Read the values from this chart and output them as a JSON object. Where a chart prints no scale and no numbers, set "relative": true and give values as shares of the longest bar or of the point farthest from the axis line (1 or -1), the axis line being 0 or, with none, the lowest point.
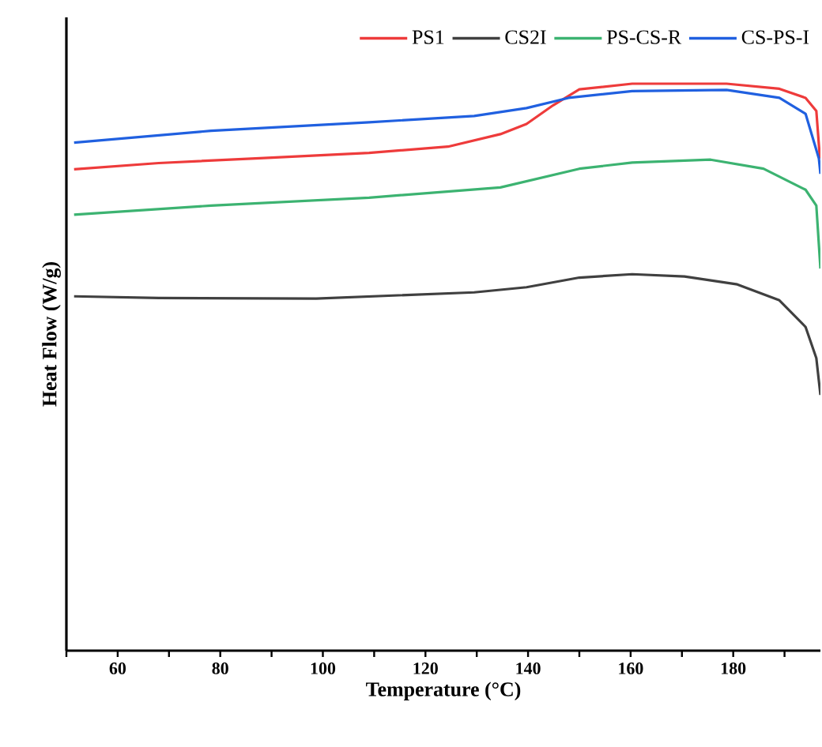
{
  "chart_data": {
    "type": "line",
    "xlabel": "Temperature (°C)",
    "ylabel": "Heat Flow (W/g)",
    "relative": true,
    "legend": "top",
    "marker": "none",
    "line_style": "solid",
    "grid": false,
    "xlim": [
      50,
      197
    ],
    "xticks": [
      {
        "value": 50,
        "label": null
      },
      60,
      {
        "value": 70,
        "label": null
      },
      80,
      {
        "value": 90,
        "label": null
      },
      100,
      {
        "value": 110,
        "label": null
      },
      120,
      {
        "value": 130,
        "label": null
      },
      140,
      {
        "value": 150,
        "label": null
      },
      160,
      {
        "value": 170,
        "label": null
      },
      180,
      {
        "value": 190,
        "label": null
      }
    ],
    "series": [
      {
        "name": "PS1",
        "color": "#ee3b3b",
        "x": [
          51.5,
          68,
          88.5,
          109,
          124.4,
          134.6,
          139.7,
          144.9,
          150,
          160.3,
          178.7,
          189,
          194.1,
          196.2,
          196.9
        ],
        "values": [
          0.849,
          0.86,
          0.869,
          0.878,
          0.889,
          0.911,
          0.929,
          0.962,
          0.99,
          1.0,
          1.0,
          0.991,
          0.975,
          0.952,
          0.868
        ]
      },
      {
        "name": "CS2I",
        "color": "#404040",
        "x": [
          51.5,
          68,
          98.7,
          129.5,
          139.7,
          150,
          160.3,
          170.5,
          180.8,
          189,
          194.1,
          196.2,
          197
        ],
        "values": [
          0.625,
          0.622,
          0.621,
          0.632,
          0.641,
          0.658,
          0.664,
          0.66,
          0.646,
          0.618,
          0.571,
          0.516,
          0.451
        ]
      },
      {
        "name": "PS-CS-R",
        "color": "#3cb371",
        "x": [
          51.5,
          78.2,
          109,
          134.6,
          150,
          160.3,
          175.6,
          185.9,
          194.1,
          196.2,
          197
        ],
        "values": [
          0.769,
          0.785,
          0.799,
          0.817,
          0.85,
          0.861,
          0.866,
          0.85,
          0.813,
          0.785,
          0.674
        ]
      },
      {
        "name": "CS-PS-I",
        "color": "#2060e0",
        "x": [
          51.5,
          78.2,
          109,
          129.5,
          139.7,
          147.9,
          160.3,
          178.7,
          189,
          194.1,
          196.7,
          197
        ],
        "values": [
          0.896,
          0.917,
          0.932,
          0.943,
          0.957,
          0.975,
          0.987,
          0.989,
          0.975,
          0.947,
          0.868,
          0.841
        ]
      }
    ]
  }
}
